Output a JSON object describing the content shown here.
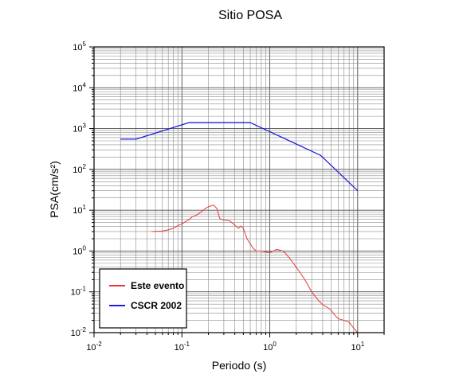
{
  "chart_data": {
    "type": "line",
    "title": "Sitio POSA",
    "xlabel": "Periodo (s)",
    "ylabel": "PSA(cm/s²)",
    "xscale": "log",
    "yscale": "log",
    "xlim": [
      0.01,
      20
    ],
    "ylim": [
      0.01,
      100000
    ],
    "grid": true,
    "legend_position": "bottom-left",
    "x_ticks": [
      {
        "value": 0.01,
        "base": "10",
        "exp": "-2"
      },
      {
        "value": 0.1,
        "base": "10",
        "exp": "-1"
      },
      {
        "value": 1,
        "base": "10",
        "exp": "0"
      },
      {
        "value": 10,
        "base": "10",
        "exp": "1"
      }
    ],
    "y_ticks": [
      {
        "value": 0.01,
        "base": "10",
        "exp": "-2"
      },
      {
        "value": 0.1,
        "base": "10",
        "exp": "-1"
      },
      {
        "value": 1,
        "base": "10",
        "exp": "0"
      },
      {
        "value": 10,
        "base": "10",
        "exp": "1"
      },
      {
        "value": 100,
        "base": "10",
        "exp": "2"
      },
      {
        "value": 1000,
        "base": "10",
        "exp": "3"
      },
      {
        "value": 10000,
        "base": "10",
        "exp": "4"
      },
      {
        "value": 100000,
        "base": "10",
        "exp": "5"
      }
    ],
    "series": [
      {
        "name": "Este evento",
        "color": "#e8383d",
        "x": [
          0.045,
          0.06,
          0.07,
          0.08,
          0.09,
          0.1,
          0.11,
          0.12,
          0.13,
          0.15,
          0.17,
          0.19,
          0.21,
          0.23,
          0.25,
          0.27,
          0.29,
          0.32,
          0.35,
          0.4,
          0.44,
          0.47,
          0.5,
          0.55,
          0.6,
          0.65,
          0.7,
          0.8,
          0.9,
          1.0,
          1.1,
          1.2,
          1.3,
          1.4,
          1.5,
          1.6,
          1.8,
          2.0,
          2.2,
          2.5,
          2.8,
          3.0,
          3.5,
          4.0,
          4.5,
          5.0,
          5.5,
          6.0,
          7.0,
          8.0,
          9.0,
          10.0
        ],
        "y": [
          3.0,
          3.1,
          3.3,
          3.6,
          4.2,
          4.6,
          5.3,
          5.8,
          6.8,
          7.8,
          9.5,
          11.5,
          12.6,
          13.3,
          11.0,
          6.2,
          5.8,
          5.6,
          5.5,
          4.3,
          3.6,
          4.1,
          3.6,
          2.0,
          1.5,
          1.15,
          1.0,
          1.0,
          0.95,
          0.92,
          1.0,
          1.1,
          1.05,
          1.0,
          0.9,
          0.75,
          0.55,
          0.4,
          0.3,
          0.2,
          0.13,
          0.1,
          0.065,
          0.048,
          0.042,
          0.035,
          0.027,
          0.022,
          0.02,
          0.018,
          0.013,
          0.01
        ]
      },
      {
        "name": "CSCR 2002",
        "color": "#1f1fe0",
        "x": [
          0.02,
          0.03,
          0.12,
          0.6,
          3.8,
          10.0
        ],
        "y": [
          550,
          550,
          1400,
          1400,
          220,
          30
        ]
      }
    ]
  }
}
